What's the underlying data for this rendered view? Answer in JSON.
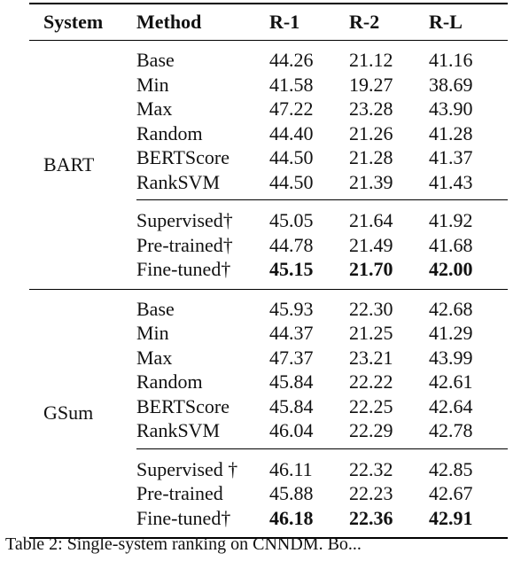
{
  "table": {
    "headers": [
      "System",
      "Method",
      "R-1",
      "R-2",
      "R-L"
    ],
    "groups": [
      {
        "system": "BART",
        "base_rows": [
          {
            "method": "Base",
            "r1": "44.26",
            "r2": "21.12",
            "rl": "41.16"
          },
          {
            "method": "Min",
            "r1": "41.58",
            "r2": "19.27",
            "rl": "38.69"
          },
          {
            "method": "Max",
            "r1": "47.22",
            "r2": "23.28",
            "rl": "43.90"
          },
          {
            "method": "Random",
            "r1": "44.40",
            "r2": "21.26",
            "rl": "41.28"
          },
          {
            "method": "BERTScore",
            "r1": "44.50",
            "r2": "21.28",
            "rl": "41.37"
          },
          {
            "method": "RankSVM",
            "r1": "44.50",
            "r2": "21.39",
            "rl": "41.43"
          }
        ],
        "learned_rows": [
          {
            "method": "Supervised†",
            "r1": "45.05",
            "r2": "21.64",
            "rl": "41.92"
          },
          {
            "method": "Pre-trained†",
            "r1": "44.78",
            "r2": "21.49",
            "rl": "41.68"
          },
          {
            "method": "Fine-tuned†",
            "r1": "45.15",
            "r2": "21.70",
            "rl": "42.00"
          }
        ]
      },
      {
        "system": "GSum",
        "base_rows": [
          {
            "method": "Base",
            "r1": "45.93",
            "r2": "22.30",
            "rl": "42.68"
          },
          {
            "method": "Min",
            "r1": "44.37",
            "r2": "21.25",
            "rl": "41.29"
          },
          {
            "method": "Max",
            "r1": "47.37",
            "r2": "23.21",
            "rl": "43.99"
          },
          {
            "method": "Random",
            "r1": "45.84",
            "r2": "22.22",
            "rl": "42.61"
          },
          {
            "method": "BERTScore",
            "r1": "45.84",
            "r2": "22.25",
            "rl": "42.64"
          },
          {
            "method": "RankSVM",
            "r1": "46.04",
            "r2": "22.29",
            "rl": "42.78"
          }
        ],
        "learned_rows": [
          {
            "method": "Supervised †",
            "r1": "46.11",
            "r2": "22.32",
            "rl": "42.85"
          },
          {
            "method": "Pre-trained",
            "r1": "45.88",
            "r2": "22.23",
            "rl": "42.67"
          },
          {
            "method": "Fine-tuned†",
            "r1": "46.18",
            "r2": "22.36",
            "rl": "42.91"
          }
        ]
      }
    ]
  },
  "caption": "Table 2: Single-system ranking on CNNDM. Bo..."
}
